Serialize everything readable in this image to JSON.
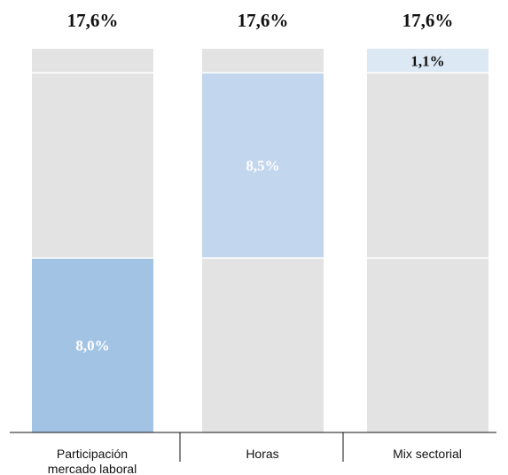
{
  "chart_data": {
    "type": "bar",
    "stacked": true,
    "categories": [
      [
        "Participación",
        "mercado laboral"
      ],
      [
        "Horas"
      ],
      [
        "Mix sectorial"
      ]
    ],
    "totals": [
      "17,6%",
      "17,6%",
      "17,6%"
    ],
    "total_values": [
      17.6,
      17.6,
      17.6
    ],
    "highlight": [
      {
        "label": "8,0%",
        "value": 8.0,
        "start": 0.0,
        "color": "#a3c3e4",
        "text_color": "#ffffff"
      },
      {
        "label": "8,5%",
        "value": 8.5,
        "start": 8.0,
        "color": "#c2d6ee",
        "text_color": "#ffffff"
      },
      {
        "label": "1,1%",
        "value": 1.1,
        "start": 16.5,
        "color": "#dde8f5",
        "text_color": "#111111"
      }
    ],
    "segment_boundaries": [
      8.0,
      16.5
    ],
    "background_color": "#e3e3e3",
    "ylim": [
      0,
      17.6
    ],
    "grid": false,
    "legend": "none"
  }
}
